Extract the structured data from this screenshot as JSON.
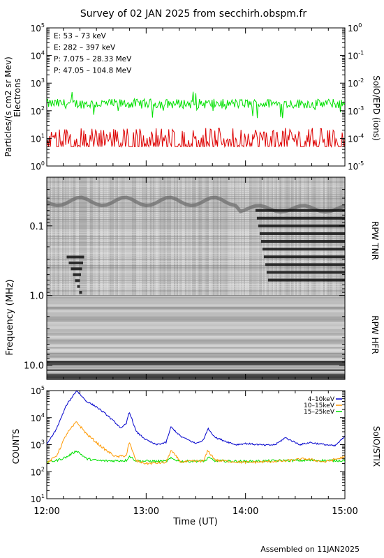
{
  "title": "Survey of 02 JAN 2025 from secchirh.obspm.fr",
  "footer": "Assembled on  11JAN2025",
  "x_axis": {
    "label": "Time (UT)",
    "ticks": [
      "12:00",
      "13:00",
      "14:00",
      "15:00"
    ]
  },
  "colors": {
    "green": "#00e000",
    "red": "#dd0000",
    "black": "#000000",
    "blue": "#0000cc",
    "orange": "#ff9900"
  },
  "chart_data": [
    {
      "type": "line",
      "name": "epd",
      "ylabel_left": "Particles/(s cm2 sr Mev)",
      "ylabel_left2": "Electrons",
      "ylabel_right": "SolO/EPD  (ions)",
      "y_scale": "log",
      "ylim": [
        1,
        100000
      ],
      "ylim_right": [
        1e-05,
        1
      ],
      "yticks_left": [
        {
          "base": "10",
          "exp": "0"
        },
        {
          "base": "10",
          "exp": "1"
        },
        {
          "base": "10",
          "exp": "2"
        },
        {
          "base": "10",
          "exp": "3"
        },
        {
          "base": "10",
          "exp": "4"
        },
        {
          "base": "10",
          "exp": "5"
        }
      ],
      "yticks_right": [
        {
          "base": "10",
          "exp": "-5"
        },
        {
          "base": "10",
          "exp": "-4"
        },
        {
          "base": "10",
          "exp": "-3"
        },
        {
          "base": "10",
          "exp": "-2"
        },
        {
          "base": "10",
          "exp": "-1"
        },
        {
          "base": "10",
          "exp": "0"
        }
      ],
      "legend": [
        {
          "label": "E: 53 – 73 keV",
          "color": "#00e000"
        },
        {
          "label": "E: 282 – 397 keV",
          "color": "#dd0000"
        },
        {
          "label": "P: 7.075 – 28.33 MeV",
          "color": "#000000"
        },
        {
          "label": "P: 47.05 – 104.8 MeV",
          "color": "#0000cc"
        }
      ],
      "series": [
        {
          "name": "E: 53 – 73 keV",
          "color": "#00e000",
          "base": 180,
          "spread": 0.35
        },
        {
          "name": "E: 282 – 397 keV",
          "color": "#dd0000",
          "base": 10,
          "spread": 0.7
        }
      ]
    },
    {
      "type": "heatmap",
      "name": "rpw",
      "ylabel": "Frequency (MHz)",
      "y_scale": "log",
      "ylim": [
        0.02,
        16
      ],
      "yticks": [
        "0.1",
        "1.0",
        "10.0"
      ],
      "ytick_values": [
        0.1,
        1.0,
        10.0
      ],
      "label_tnr": "RPW TNR",
      "label_hfr": "RPW HFR",
      "tnr_hfr_boundary_mhz": 1.0,
      "bursts": [
        {
          "t_start": 12.2,
          "t_end": 12.45,
          "f_high": 0.28,
          "f_low": 0.9
        },
        {
          "t_start": 14.1,
          "t_end": 15.0,
          "f_high": 0.06,
          "f_low": 0.6
        }
      ]
    },
    {
      "type": "line",
      "name": "stix",
      "ylabel": "COUNTS",
      "ylabel_right": "SolO/STIX",
      "y_scale": "log",
      "ylim": [
        10,
        100000
      ],
      "yticks": [
        {
          "base": "10",
          "exp": "1"
        },
        {
          "base": "10",
          "exp": "2"
        },
        {
          "base": "10",
          "exp": "3"
        },
        {
          "base": "10",
          "exp": "4"
        },
        {
          "base": "10",
          "exp": "5"
        }
      ],
      "series": [
        {
          "name": "4–10keV",
          "color": "#0000cc",
          "x": [
            12.0,
            12.1,
            12.2,
            12.3,
            12.4,
            12.5,
            12.6,
            12.7,
            12.75,
            12.8,
            12.83,
            12.9,
            13.0,
            13.1,
            13.2,
            13.25,
            13.35,
            13.5,
            13.58,
            13.62,
            13.7,
            13.9,
            14.0,
            14.2,
            14.3,
            14.4,
            14.55,
            14.65,
            14.8,
            14.9,
            15.0
          ],
          "values": [
            1000,
            4000,
            30000,
            100000,
            40000,
            25000,
            13000,
            6000,
            4000,
            6000,
            17000,
            3000,
            1500,
            1000,
            1200,
            4500,
            2000,
            1100,
            1500,
            4000,
            1800,
            1000,
            1100,
            950,
            1000,
            1800,
            1000,
            1200,
            1000,
            900,
            2000
          ]
        },
        {
          "name": "10–15keV",
          "color": "#ff9900",
          "x": [
            12.0,
            12.1,
            12.2,
            12.3,
            12.4,
            12.5,
            12.6,
            12.7,
            12.8,
            12.83,
            12.9,
            13.0,
            13.2,
            13.25,
            13.35,
            13.58,
            13.62,
            13.7,
            14.0,
            14.4,
            14.6,
            14.8,
            15.0
          ],
          "values": [
            200,
            400,
            2500,
            7000,
            2500,
            1200,
            600,
            350,
            400,
            1200,
            250,
            200,
            220,
            600,
            230,
            250,
            600,
            260,
            220,
            250,
            300,
            230,
            350
          ]
        },
        {
          "name": "15–25keV",
          "color": "#00e000",
          "x": [
            12.0,
            12.1,
            12.2,
            12.3,
            12.4,
            12.5,
            12.6,
            12.8,
            12.83,
            12.9,
            13.2,
            13.25,
            13.35,
            13.6,
            13.62,
            13.7,
            14.0,
            14.4,
            15.0
          ],
          "values": [
            230,
            260,
            350,
            600,
            300,
            260,
            250,
            260,
            380,
            250,
            240,
            310,
            240,
            250,
            330,
            250,
            240,
            260,
            260
          ]
        }
      ]
    }
  ]
}
